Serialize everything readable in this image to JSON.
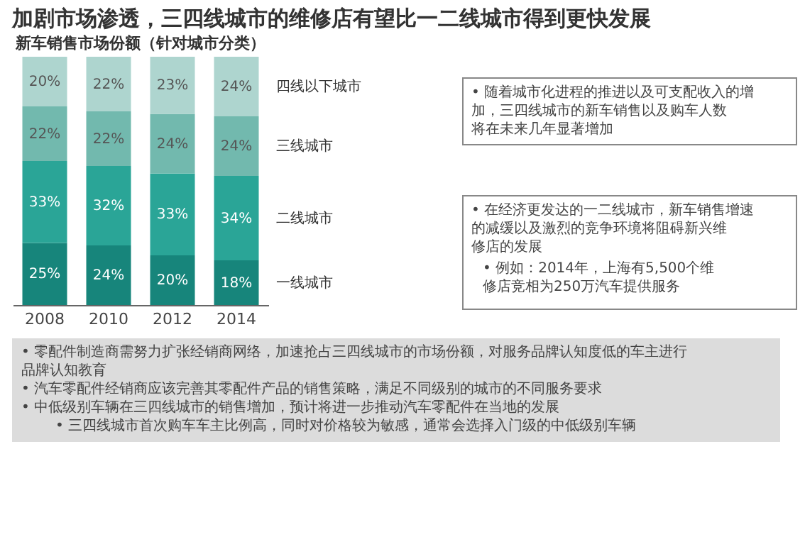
{
  "chart_data": {
    "type": "bar",
    "title": "加剧市场渗透，三四线城市的维修店有望比一二线城市得到更快发展",
    "subtitle": "新车销售市场份额（针对城市分类）",
    "categories": [
      "2008",
      "2010",
      "2012",
      "2014"
    ],
    "stacked": true,
    "tick_labels": "x",
    "series": [
      {
        "name": "一线城市",
        "color": "#17857b",
        "values": [
          25,
          24,
          20,
          18
        ],
        "value_labels": [
          "25%",
          "24%",
          "20%",
          "18%"
        ]
      },
      {
        "name": "二线城市",
        "color": "#2aa597",
        "values": [
          33,
          32,
          33,
          34
        ],
        "value_labels": [
          "33%",
          "32%",
          "33%",
          "34%"
        ]
      },
      {
        "name": "三线城市",
        "color": "#72b9ae",
        "values": [
          22,
          22,
          24,
          24
        ],
        "value_labels": [
          "22%",
          "22%",
          "24%",
          "24%"
        ]
      },
      {
        "name": "四线以下城市",
        "color": "#aed5cf",
        "values": [
          20,
          22,
          23,
          24
        ],
        "value_labels": [
          "20%",
          "22%",
          "23%",
          "24%"
        ]
      }
    ],
    "annotations": [
      "• 随着城市化进程的推进以及可支配收入的增加，三四线城市的新车销售以及购车人数将在未来几年显著增加",
      "• 在经济更发达的一二线城市，新车销售增速的减缓以及激烈的竞争环境将阻碍新兴维修店的发展",
      "• 例如：2014年，上海有5,500个维修店竞相为250万汽车提供服务",
      "• 零配件制造商需努力扩张经销商网络，加速抢占三四线城市的市场份额，对服务品牌认知度低的车主进行品牌认知教育",
      "• 汽车零配件经销商应该完善其零配件产品的销售策略，满足不同级别的城市的不同服务要求",
      "• 中低级别车辆在三四线城市的销售增加，预计将进一步推动汽车零配件在当地的发展",
      "• 三四线城市首次购车车主比例高，同时对价格较为敏感，通常会选择入门级的中低级别车辆"
    ]
  }
}
